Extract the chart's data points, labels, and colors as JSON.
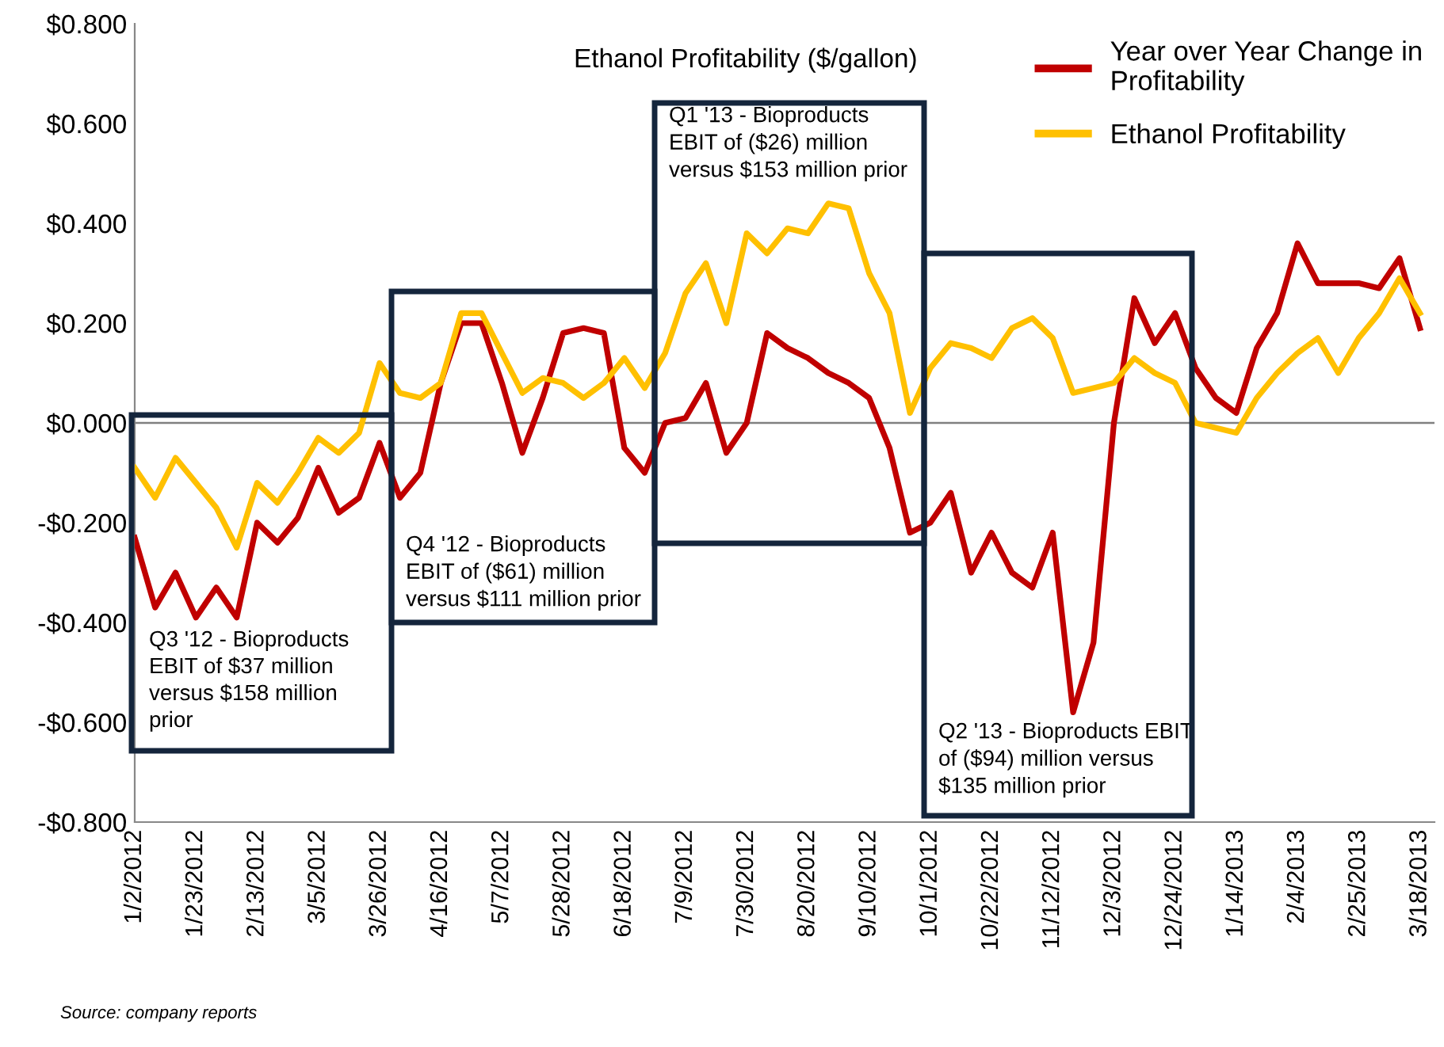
{
  "chart_data": {
    "type": "line",
    "title": "Ethanol Profitability ($/gallon)",
    "x": [
      "2012-01-02",
      "2012-01-09",
      "2012-01-16",
      "2012-01-23",
      "2012-01-30",
      "2012-02-06",
      "2012-02-13",
      "2012-02-20",
      "2012-02-27",
      "2012-03-05",
      "2012-03-12",
      "2012-03-19",
      "2012-03-26",
      "2012-04-02",
      "2012-04-09",
      "2012-04-16",
      "2012-04-23",
      "2012-04-30",
      "2012-05-07",
      "2012-05-14",
      "2012-05-21",
      "2012-05-28",
      "2012-06-04",
      "2012-06-11",
      "2012-06-18",
      "2012-06-25",
      "2012-07-02",
      "2012-07-09",
      "2012-07-16",
      "2012-07-23",
      "2012-07-30",
      "2012-08-06",
      "2012-08-13",
      "2012-08-20",
      "2012-08-27",
      "2012-09-03",
      "2012-09-10",
      "2012-09-17",
      "2012-09-24",
      "2012-10-01",
      "2012-10-08",
      "2012-10-15",
      "2012-10-22",
      "2012-10-29",
      "2012-11-05",
      "2012-11-12",
      "2012-11-19",
      "2012-11-26",
      "2012-12-03",
      "2012-12-10",
      "2012-12-17",
      "2012-12-24",
      "2012-12-31",
      "2013-01-07",
      "2013-01-14",
      "2013-01-21",
      "2013-01-28",
      "2013-02-04",
      "2013-02-11",
      "2013-02-18",
      "2013-02-25",
      "2013-03-04",
      "2013-03-11",
      "2013-03-18"
    ],
    "series": [
      {
        "name": "Year over Year Change in\nProfitability",
        "color": "#c00000",
        "values": [
          -0.23,
          -0.37,
          -0.3,
          -0.39,
          -0.33,
          -0.39,
          -0.2,
          -0.24,
          -0.19,
          -0.09,
          -0.18,
          -0.15,
          -0.04,
          -0.15,
          -0.1,
          0.08,
          0.2,
          0.2,
          0.08,
          -0.06,
          0.05,
          0.18,
          0.19,
          0.18,
          -0.05,
          -0.1,
          0.0,
          0.01,
          0.08,
          -0.06,
          0.0,
          0.18,
          0.15,
          0.13,
          0.1,
          0.08,
          0.05,
          -0.05,
          -0.22,
          -0.2,
          -0.14,
          -0.3,
          -0.22,
          -0.3,
          -0.33,
          -0.22,
          -0.58,
          -0.44,
          0.0,
          0.25,
          0.16,
          0.22,
          0.11,
          0.05,
          0.02,
          0.15,
          0.22,
          0.36,
          0.28,
          0.28,
          0.28,
          0.27,
          0.33,
          0.19
        ]
      },
      {
        "name": "Ethanol Profitability",
        "color": "#ffc000",
        "values": [
          -0.09,
          -0.15,
          -0.07,
          -0.12,
          -0.17,
          -0.25,
          -0.12,
          -0.16,
          -0.1,
          -0.03,
          -0.06,
          -0.02,
          0.12,
          0.06,
          0.05,
          0.08,
          0.22,
          0.22,
          0.14,
          0.06,
          0.09,
          0.08,
          0.05,
          0.08,
          0.13,
          0.07,
          0.14,
          0.26,
          0.32,
          0.2,
          0.38,
          0.34,
          0.39,
          0.38,
          0.44,
          0.43,
          0.3,
          0.22,
          0.02,
          0.11,
          0.16,
          0.15,
          0.13,
          0.19,
          0.21,
          0.17,
          0.06,
          0.07,
          0.08,
          0.13,
          0.1,
          0.08,
          0.0,
          -0.01,
          -0.02,
          0.05,
          0.1,
          0.14,
          0.17,
          0.1,
          0.17,
          0.22,
          0.29,
          0.22
        ]
      }
    ],
    "xlim": [
      "2012-01-02",
      "2013-03-23"
    ],
    "xticks": [
      {
        "value": "2012-01-02",
        "label": "1/2/2012"
      },
      {
        "value": "2012-01-23",
        "label": "1/23/2012"
      },
      {
        "value": "2012-02-13",
        "label": "2/13/2012"
      },
      {
        "value": "2012-03-05",
        "label": "3/5/2012"
      },
      {
        "value": "2012-03-26",
        "label": "3/26/2012"
      },
      {
        "value": "2012-04-16",
        "label": "4/16/2012"
      },
      {
        "value": "2012-05-07",
        "label": "5/7/2012"
      },
      {
        "value": "2012-05-28",
        "label": "5/28/2012"
      },
      {
        "value": "2012-06-18",
        "label": "6/18/2012"
      },
      {
        "value": "2012-07-09",
        "label": "7/9/2012"
      },
      {
        "value": "2012-07-30",
        "label": "7/30/2012"
      },
      {
        "value": "2012-08-20",
        "label": "8/20/2012"
      },
      {
        "value": "2012-09-10",
        "label": "9/10/2012"
      },
      {
        "value": "2012-10-01",
        "label": "10/1/2012"
      },
      {
        "value": "2012-10-22",
        "label": "10/22/2012"
      },
      {
        "value": "2012-11-12",
        "label": "11/12/2012"
      },
      {
        "value": "2012-12-03",
        "label": "12/3/2012"
      },
      {
        "value": "2012-12-24",
        "label": "12/24/2012"
      },
      {
        "value": "2013-01-14",
        "label": "1/14/2013"
      },
      {
        "value": "2013-02-04",
        "label": "2/4/2013"
      },
      {
        "value": "2013-02-25",
        "label": "2/25/2013"
      },
      {
        "value": "2013-03-18",
        "label": "3/18/2013"
      }
    ],
    "ylim": [
      -0.8,
      0.8
    ],
    "yticks": [
      {
        "value": -0.8,
        "label": "-$0.800"
      },
      {
        "value": -0.6,
        "label": "-$0.600"
      },
      {
        "value": -0.4,
        "label": "-$0.400"
      },
      {
        "value": -0.2,
        "label": "-$0.200"
      },
      {
        "value": 0.0,
        "label": "$0.000"
      },
      {
        "value": 0.2,
        "label": "$0.200"
      },
      {
        "value": 0.4,
        "label": "$0.400"
      },
      {
        "value": 0.6,
        "label": "$0.600"
      },
      {
        "value": 0.8,
        "label": "$0.800"
      }
    ],
    "ref_lines": [
      {
        "axis": "y",
        "value": 0,
        "color": "#808080"
      }
    ],
    "grid": false,
    "legend": "top right",
    "marker": "none",
    "line_style": "solid",
    "annotations": [
      "Q3 '12 - Bioproducts\nEBIT of $37 million\nversus $158 million\nprior",
      "Q4 '12 - Bioproducts\nEBIT of ($61) million\nversus $111 million prior",
      "Q1 '13 - Bioproducts\nEBIT of ($26) million\nversus $153 million prior",
      "Q2 '13 - Bioproducts EBIT\nof ($94) million versus\n$135 million prior",
      "Source: company reports"
    ]
  }
}
